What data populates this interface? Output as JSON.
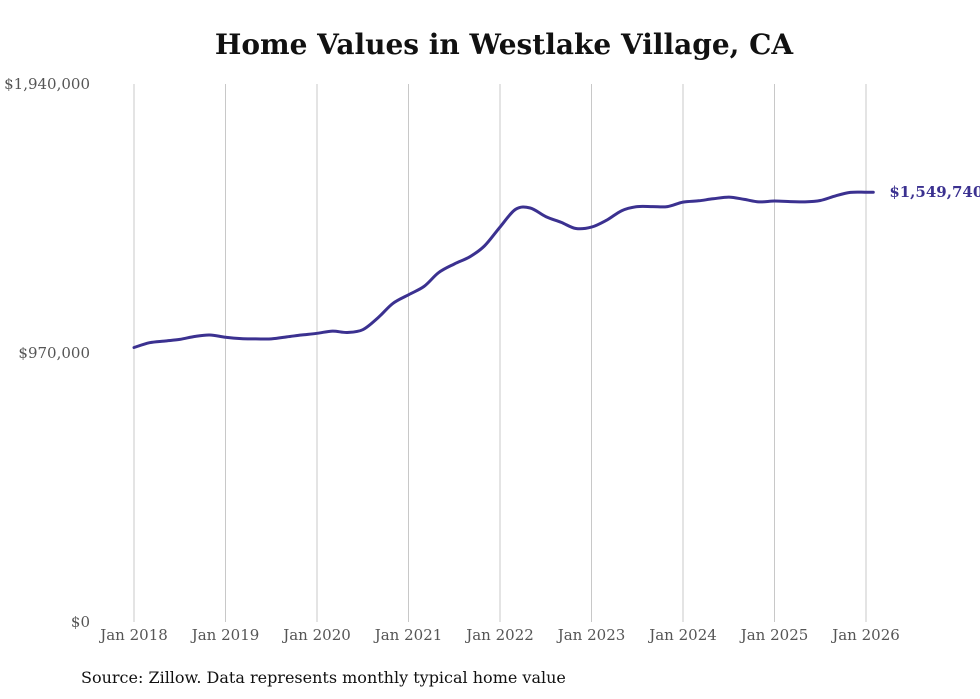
{
  "chart_data": {
    "type": "line",
    "title": "Home Values in Westlake Village, CA",
    "source": "Source: Zillow. Data represents monthly typical home value",
    "ylim": [
      0,
      1940000
    ],
    "y_ticks": [
      {
        "value": 0,
        "label": "$0"
      },
      {
        "value": 970000,
        "label": "$970,000"
      },
      {
        "value": 1940000,
        "label": "$1,940,000"
      }
    ],
    "x_ticks": [
      {
        "value": 2018.0,
        "label": "Jan 2018"
      },
      {
        "value": 2019.0,
        "label": "Jan 2019"
      },
      {
        "value": 2020.0,
        "label": "Jan 2020"
      },
      {
        "value": 2021.0,
        "label": "Jan 2021"
      },
      {
        "value": 2022.0,
        "label": "Jan 2022"
      },
      {
        "value": 2023.0,
        "label": "Jan 2023"
      },
      {
        "value": 2024.0,
        "label": "Jan 2024"
      },
      {
        "value": 2025.0,
        "label": "Jan 2025"
      },
      {
        "value": 2026.0,
        "label": "Jan 2026"
      }
    ],
    "xlim": [
      2018.0,
      2026.0833
    ],
    "end_label": "$1,549,740",
    "line_color": "#3b3190",
    "series": [
      {
        "name": "Typical home value",
        "x": [
          2018.0,
          2018.17,
          2018.33,
          2018.5,
          2018.67,
          2018.83,
          2019.0,
          2019.17,
          2019.33,
          2019.5,
          2019.67,
          2019.83,
          2020.0,
          2020.17,
          2020.33,
          2020.5,
          2020.67,
          2020.83,
          2021.0,
          2021.17,
          2021.33,
          2021.5,
          2021.67,
          2021.83,
          2022.0,
          2022.17,
          2022.33,
          2022.5,
          2022.67,
          2022.83,
          2023.0,
          2023.17,
          2023.33,
          2023.5,
          2023.67,
          2023.83,
          2024.0,
          2024.17,
          2024.33,
          2024.5,
          2024.67,
          2024.83,
          2025.0,
          2025.17,
          2025.33,
          2025.5,
          2025.67,
          2025.83,
          2026.0,
          2026.08
        ],
        "values": [
          990000,
          1007000,
          1013000,
          1019000,
          1030000,
          1035000,
          1027000,
          1022000,
          1021000,
          1021000,
          1028000,
          1035000,
          1041000,
          1049000,
          1044000,
          1054000,
          1098000,
          1149000,
          1180000,
          1210000,
          1260000,
          1291000,
          1317000,
          1356000,
          1424000,
          1488000,
          1493000,
          1462000,
          1441000,
          1419000,
          1424000,
          1450000,
          1483000,
          1498000,
          1498000,
          1498000,
          1514000,
          1519000,
          1526000,
          1532000,
          1524000,
          1515000,
          1518000,
          1516000,
          1515000,
          1520000,
          1537000,
          1549000,
          1549740,
          1549740
        ]
      }
    ]
  }
}
